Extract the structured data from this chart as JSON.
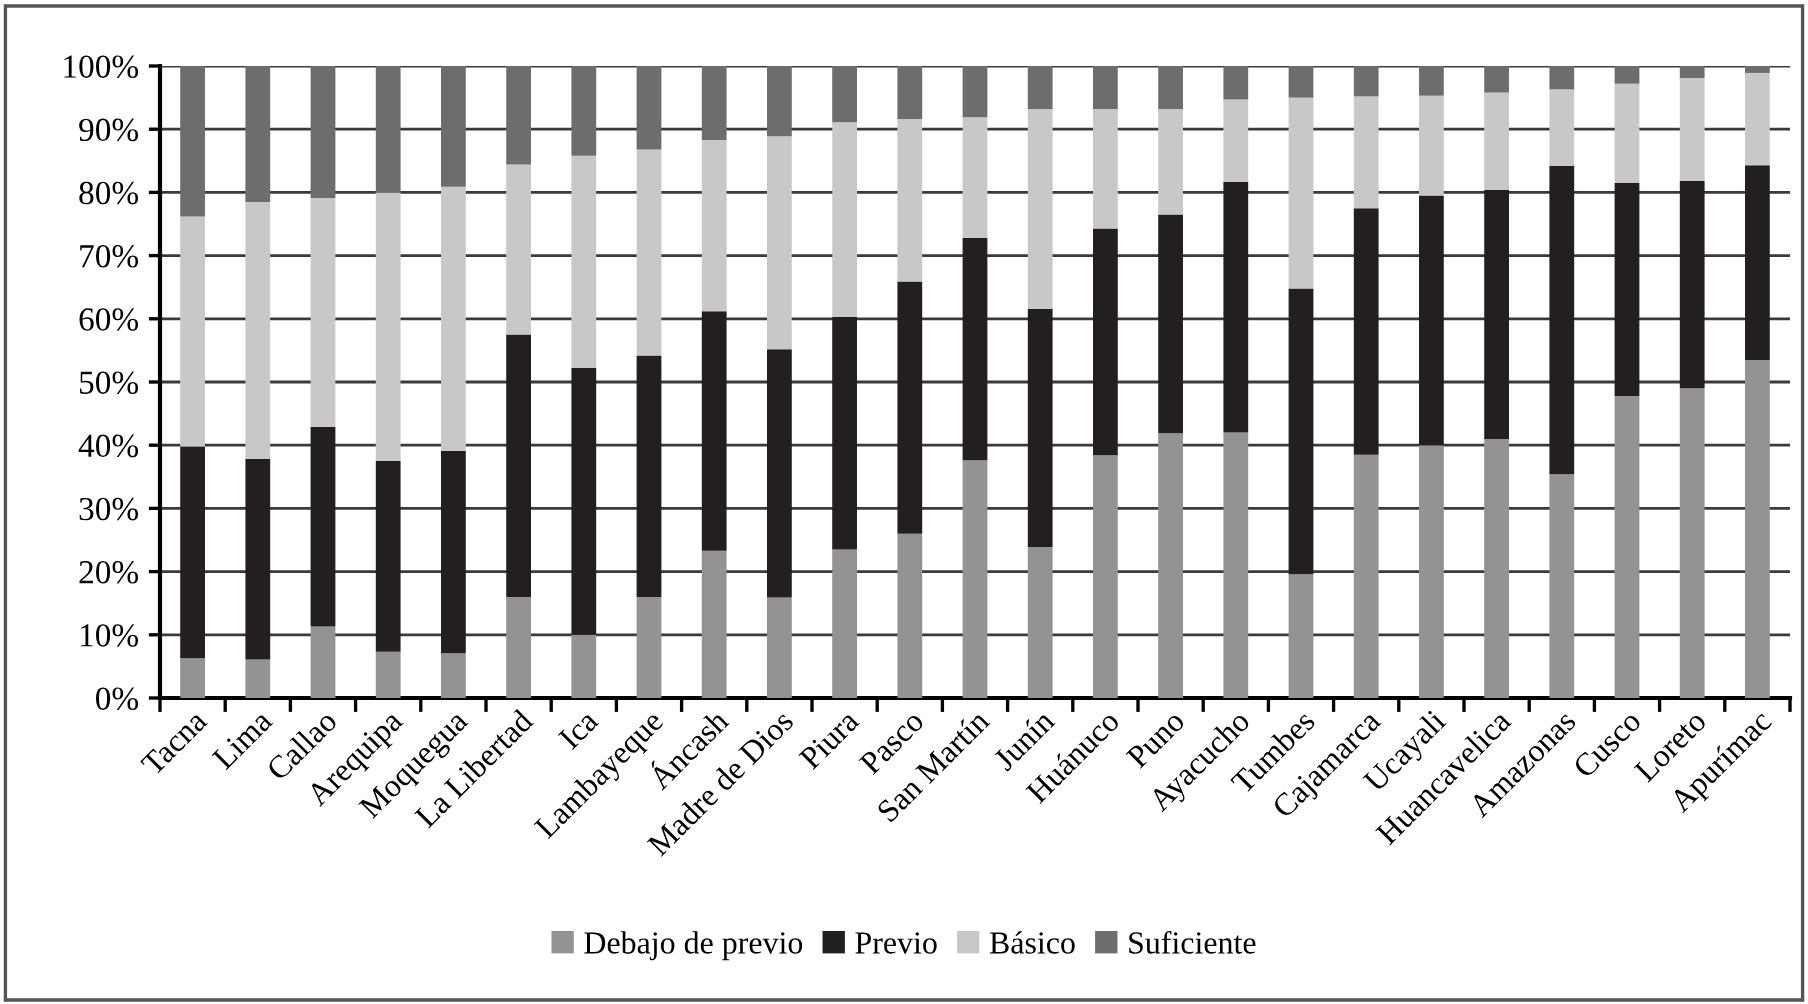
{
  "chart_data": {
    "type": "bar",
    "stacked": true,
    "categories": [
      "Tacna",
      "Lima",
      "Callao",
      "Arequipa",
      "Moquegua",
      "La Libertad",
      "Ica",
      "Lambayeque",
      "Áncash",
      "Madre de Dios",
      "Piura",
      "Pasco",
      "San Martín",
      "Junín",
      "Huánuco",
      "Puno",
      "Ayacucho",
      "Tumbes",
      "Cajamarca",
      "Ucayali",
      "Huancavelica",
      "Amazonas",
      "Cusco",
      "Loreto",
      "Apurímac"
    ],
    "series": [
      {
        "name": "Debajo de previo",
        "color": "#939393",
        "values": [
          6.3,
          6.1,
          11.3,
          7.3,
          7.1,
          16,
          10,
          16,
          23.3,
          15.9,
          23.5,
          26,
          37.6,
          23.9,
          38.4,
          41.9,
          42,
          19.6,
          38.5,
          40,
          41,
          35.4,
          47.8,
          49,
          53.5
        ]
      },
      {
        "name": "Previo",
        "color": "#231f20",
        "values": [
          33.5,
          31.7,
          31.6,
          30.2,
          32,
          41.5,
          42.2,
          38.2,
          37.9,
          39.3,
          36.8,
          39.9,
          35.2,
          37.7,
          35.9,
          34.6,
          39.7,
          45.2,
          39,
          39.5,
          39.4,
          48.8,
          33.7,
          32.8,
          30.8
        ]
      },
      {
        "name": "Básico",
        "color": "#c8c8c8",
        "values": [
          36.4,
          40.7,
          36.2,
          42.5,
          41.8,
          26.9,
          33.6,
          32.6,
          27.1,
          33.7,
          30.8,
          25.7,
          19.1,
          31.6,
          18.9,
          16.7,
          13,
          30.2,
          17.7,
          15.8,
          15.4,
          12.1,
          15.7,
          16.3,
          14.6
        ]
      },
      {
        "name": "Suficiente",
        "color": "#6d6d6f",
        "values": [
          23.8,
          21.5,
          20.9,
          20,
          19.1,
          15.6,
          14.2,
          13.2,
          11.7,
          11.1,
          8.9,
          8.4,
          8.1,
          6.8,
          6.8,
          6.8,
          5.3,
          5,
          4.8,
          4.7,
          4.2,
          3.7,
          2.8,
          1.9,
          1.1
        ]
      }
    ],
    "ylim": [
      0,
      100
    ],
    "yticks": [
      {
        "value": 0,
        "label": "0%"
      },
      {
        "value": 10,
        "label": "10%"
      },
      {
        "value": 20,
        "label": "20%"
      },
      {
        "value": 30,
        "label": "30%"
      },
      {
        "value": 40,
        "label": "40%"
      },
      {
        "value": 50,
        "label": "50%"
      },
      {
        "value": 60,
        "label": "60%"
      },
      {
        "value": 70,
        "label": "70%"
      },
      {
        "value": 80,
        "label": "80%"
      },
      {
        "value": 90,
        "label": "90%"
      },
      {
        "value": 100,
        "label": "100%"
      }
    ],
    "grid": "y",
    "legend": "bottom"
  }
}
